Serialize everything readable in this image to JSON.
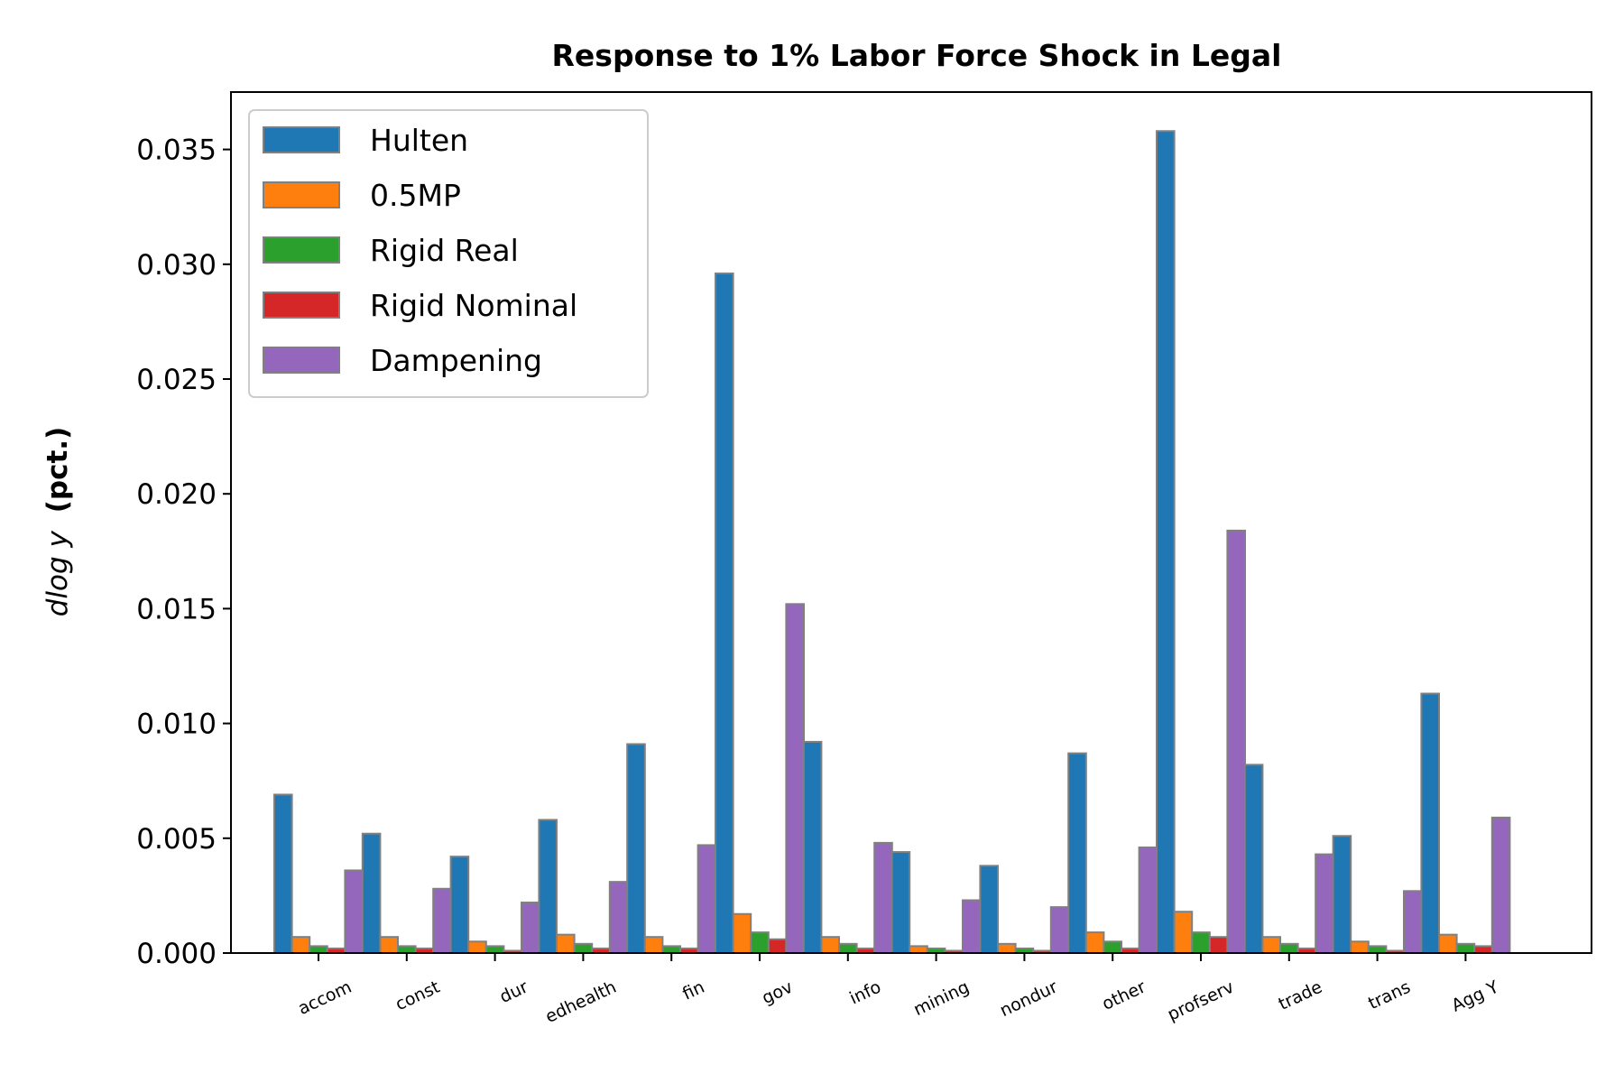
{
  "chart_data": {
    "type": "bar",
    "title": "Response to 1% Labor Force Shock in Legal",
    "ylabel": "dlog y",
    "ylabel_suffix": "(pct.)",
    "xlabel": "",
    "ylim": [
      0,
      0.0375
    ],
    "yticks": [
      "0.000",
      "0.005",
      "0.010",
      "0.015",
      "0.020",
      "0.025",
      "0.030",
      "0.035"
    ],
    "ytick_values": [
      0,
      0.005,
      0.01,
      0.015,
      0.02,
      0.025,
      0.03,
      0.035
    ],
    "legend_position": "upper-left",
    "grid": false,
    "categories": [
      "accom",
      "const",
      "dur",
      "edhealth",
      "fin",
      "gov",
      "info",
      "mining",
      "nondur",
      "other",
      "profserv",
      "trade",
      "trans",
      "Agg Y"
    ],
    "series": [
      {
        "name": "Hulten",
        "color": "#1f77b4",
        "values": [
          0.0069,
          0.0052,
          0.0042,
          0.0058,
          0.0091,
          0.0296,
          0.0092,
          0.0044,
          0.0038,
          0.0087,
          0.0358,
          0.0082,
          0.0051,
          0.0113
        ]
      },
      {
        "name": "0.5MP",
        "color": "#ff7f0e",
        "values": [
          0.0007,
          0.0007,
          0.0005,
          0.0008,
          0.0007,
          0.0017,
          0.0007,
          0.0003,
          0.0004,
          0.0009,
          0.0018,
          0.0007,
          0.0005,
          0.0008
        ]
      },
      {
        "name": "Rigid Real",
        "color": "#2ca02c",
        "values": [
          0.0003,
          0.0003,
          0.0003,
          0.0004,
          0.0003,
          0.0009,
          0.0004,
          0.0002,
          0.0002,
          0.0005,
          0.0009,
          0.0004,
          0.0003,
          0.0004
        ]
      },
      {
        "name": "Rigid Nominal",
        "color": "#d62728",
        "values": [
          0.0002,
          0.0002,
          0.0001,
          0.0002,
          0.0002,
          0.0006,
          0.0002,
          0.0001,
          0.0001,
          0.0002,
          0.0007,
          0.0002,
          0.0001,
          0.0003
        ]
      },
      {
        "name": "Dampening",
        "color": "#9467bd",
        "values": [
          0.0036,
          0.0028,
          0.0022,
          0.0031,
          0.0047,
          0.0152,
          0.0048,
          0.0023,
          0.002,
          0.0046,
          0.0184,
          0.0043,
          0.0027,
          0.0059
        ]
      }
    ]
  }
}
